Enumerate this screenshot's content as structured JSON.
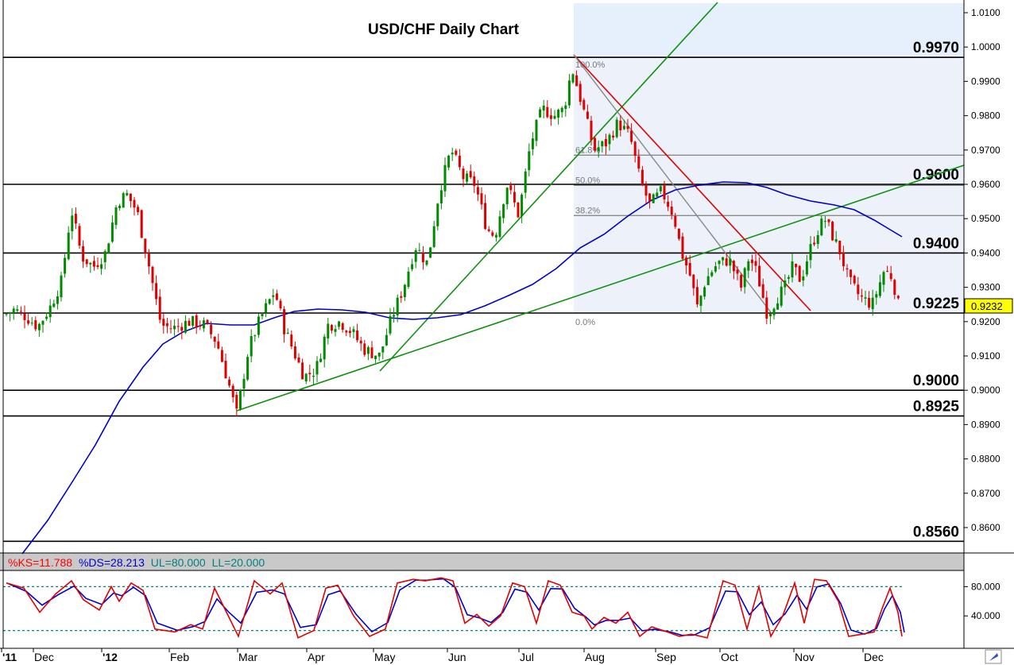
{
  "chart_data": {
    "type": "candlestick",
    "title": "USD/CHF Daily Chart",
    "ylim": [
      0.855,
      1.0115
    ],
    "y_ticks": [
      "1.0100",
      "1.0000",
      "0.9900",
      "0.9800",
      "0.9700",
      "0.9600",
      "0.9500",
      "0.9400",
      "0.9300",
      "0.9200",
      "0.9100",
      "0.9000",
      "0.8900",
      "0.8800",
      "0.8700",
      "0.8600"
    ],
    "x_labels": [
      "'11",
      "Dec",
      "'12",
      "Feb",
      "Mar",
      "Apr",
      "May",
      "Jun",
      "Jul",
      "Aug",
      "Sep",
      "Oct",
      "Nov",
      "Dec"
    ],
    "last_price": "0.9232",
    "levels": [
      {
        "label": "0.9970",
        "value": 0.997
      },
      {
        "label": "0.9600",
        "value": 0.96
      },
      {
        "label": "0.9400",
        "value": 0.94
      },
      {
        "label": "0.9225",
        "value": 0.9225
      },
      {
        "label": "0.9000",
        "value": 0.9
      },
      {
        "label": "0.8925",
        "value": 0.8925
      },
      {
        "label": "0.8560",
        "value": 0.856
      }
    ],
    "fibonacci": [
      {
        "label": "100.0%",
        "value": 0.997
      },
      {
        "label": "61.8%",
        "value": 0.9685
      },
      {
        "label": "50.0%",
        "value": 0.9597
      },
      {
        "label": "38.2%",
        "value": 0.9509
      },
      {
        "label": "0.0%",
        "value": 0.9225
      }
    ],
    "stochastic": {
      "legend": [
        {
          "text": "%KS=11.788",
          "color": "#ff0000"
        },
        {
          "text": "%DS=28.213",
          "color": "#0000cc"
        },
        {
          "text": "UL=80.000",
          "color": "#008080"
        },
        {
          "text": "LL=20.000",
          "color": "#008080"
        }
      ],
      "ylim": [
        0,
        100
      ],
      "y_ticks": [
        "80.000",
        "40.000"
      ],
      "upper_level": 80,
      "lower_level": 20
    }
  }
}
